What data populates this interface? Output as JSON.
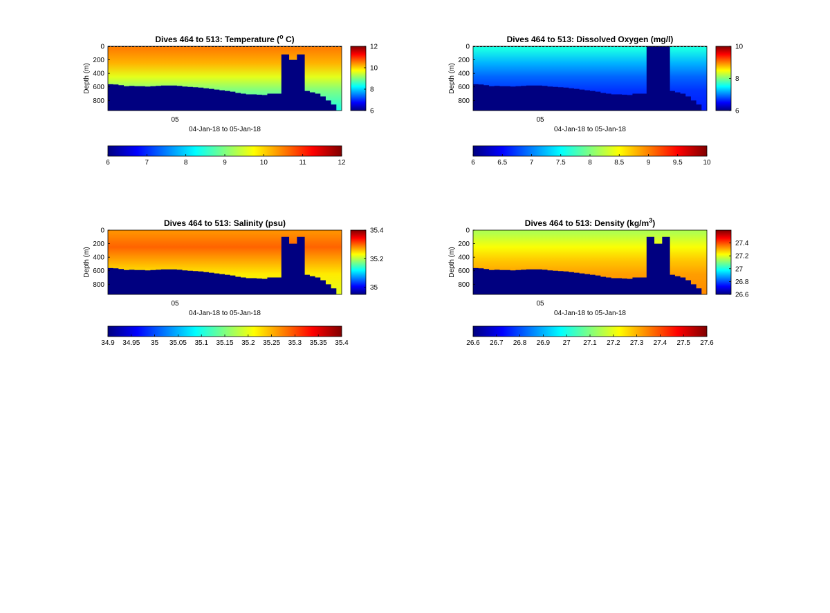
{
  "chart_data": [
    {
      "type": "heatmap",
      "title": "Dives 464 to 513: Temperature (",
      "title_sup": "o",
      "title_end": " C)",
      "ylabel": "Depth (m)",
      "xlabel": "04-Jan-18 to 05-Jan-18",
      "x_tick": "05",
      "yticks": [
        "0",
        "200",
        "400",
        "600",
        "800"
      ],
      "ylim": [
        0,
        950
      ],
      "clim": [
        6,
        12
      ],
      "side_ticks": [
        "6",
        "8",
        "10",
        "12"
      ],
      "bottom_ticks": [
        "6",
        "7",
        "8",
        "9",
        "10",
        "11",
        "12"
      ],
      "bottom_range": [
        6,
        12
      ],
      "dashed_surface": true,
      "seafloor_depth_m": [
        560,
        565,
        575,
        590,
        585,
        590,
        590,
        595,
        590,
        585,
        580,
        580,
        580,
        585,
        595,
        600,
        605,
        610,
        620,
        630,
        640,
        650,
        660,
        670,
        690,
        700,
        710,
        710,
        715,
        720,
        700,
        700,
        700,
        700,
        700,
        700,
        660,
        660,
        680,
        700,
        740,
        800,
        860,
        950
      ],
      "gap_top_m": [
        120,
        200,
        120
      ],
      "layers": [
        {
          "depth_m": 40,
          "value": 10.5
        },
        {
          "depth_m": 250,
          "value": 10.2
        },
        {
          "depth_m": 450,
          "value": 9.6
        },
        {
          "depth_m": 650,
          "value": 9.0
        },
        {
          "depth_m": 950,
          "value": 8.4
        }
      ]
    },
    {
      "type": "heatmap",
      "title": "Dives 464 to 513: Dissolved Oxygen (mg/l)",
      "ylabel": "Depth (m)",
      "xlabel": "04-Jan-18 to 05-Jan-18",
      "x_tick": "05",
      "yticks": [
        "0",
        "200",
        "400",
        "600",
        "800"
      ],
      "ylim": [
        0,
        950
      ],
      "clim": [
        6,
        10
      ],
      "side_ticks": [
        "6",
        "8",
        "10"
      ],
      "bottom_ticks": [
        "6",
        "6.5",
        "7",
        "7.5",
        "8",
        "8.5",
        "9",
        "9.5",
        "10"
      ],
      "bottom_range": [
        6,
        10
      ],
      "dashed_surface": true,
      "seafloor_depth_m": [
        560,
        565,
        575,
        590,
        585,
        590,
        590,
        595,
        590,
        585,
        580,
        580,
        580,
        585,
        595,
        600,
        605,
        610,
        620,
        630,
        640,
        650,
        660,
        670,
        690,
        700,
        710,
        710,
        715,
        720,
        700,
        700,
        700,
        700,
        700,
        700,
        660,
        660,
        680,
        700,
        740,
        800,
        860,
        950
      ],
      "gap_top_m": [
        0,
        0,
        0
      ],
      "layers": [
        {
          "depth_m": 40,
          "value": 7.6
        },
        {
          "depth_m": 250,
          "value": 7.2
        },
        {
          "depth_m": 450,
          "value": 6.9
        },
        {
          "depth_m": 650,
          "value": 6.7
        },
        {
          "depth_m": 950,
          "value": 6.6
        }
      ]
    },
    {
      "type": "heatmap",
      "title": "Dives 464 to 513: Salinity (psu)",
      "ylabel": "Depth (m)",
      "xlabel": "04-Jan-18 to 05-Jan-18",
      "x_tick": "05",
      "yticks": [
        "0",
        "200",
        "400",
        "600",
        "800"
      ],
      "ylim": [
        0,
        950
      ],
      "clim": [
        34.95,
        35.4
      ],
      "side_ticks": [
        "35",
        "35.2",
        "35.4"
      ],
      "side_tick_values": [
        35,
        35.2,
        35.4
      ],
      "bottom_ticks": [
        "34.9",
        "34.95",
        "35",
        "35.05",
        "35.1",
        "35.15",
        "35.2",
        "35.25",
        "35.3",
        "35.35",
        "35.4"
      ],
      "bottom_range": [
        34.9,
        35.4
      ],
      "dashed_surface": false,
      "seafloor_depth_m": [
        560,
        565,
        575,
        590,
        585,
        590,
        590,
        595,
        590,
        585,
        580,
        580,
        580,
        585,
        595,
        600,
        605,
        610,
        620,
        630,
        640,
        650,
        660,
        670,
        690,
        700,
        710,
        710,
        715,
        720,
        700,
        700,
        700,
        700,
        700,
        700,
        660,
        660,
        680,
        700,
        740,
        800,
        860,
        950
      ],
      "gap_top_m": [
        100,
        200,
        100
      ],
      "layers": [
        {
          "depth_m": 40,
          "value": 35.28
        },
        {
          "depth_m": 250,
          "value": 35.3
        },
        {
          "depth_m": 450,
          "value": 35.27
        },
        {
          "depth_m": 650,
          "value": 35.24
        },
        {
          "depth_m": 950,
          "value": 35.22
        }
      ]
    },
    {
      "type": "heatmap",
      "title": "Dives 464 to 513: Density (kg/m",
      "title_sup": "3",
      "title_end": ")",
      "ylabel": "Depth (m)",
      "xlabel": "04-Jan-18 to 05-Jan-18",
      "x_tick": "05",
      "yticks": [
        "0",
        "200",
        "400",
        "600",
        "800"
      ],
      "ylim": [
        0,
        950
      ],
      "clim": [
        26.6,
        27.6
      ],
      "side_ticks": [
        "26.6",
        "26.8",
        "27",
        "27.2",
        "27.4"
      ],
      "side_tick_values": [
        26.6,
        26.8,
        27,
        27.2,
        27.4
      ],
      "bottom_ticks": [
        "26.6",
        "26.7",
        "26.8",
        "26.9",
        "27",
        "27.1",
        "27.2",
        "27.3",
        "27.4",
        "27.5",
        "27.6"
      ],
      "bottom_range": [
        26.6,
        27.6
      ],
      "dashed_surface": false,
      "seafloor_depth_m": [
        560,
        565,
        575,
        590,
        585,
        590,
        590,
        595,
        590,
        585,
        580,
        580,
        580,
        585,
        595,
        600,
        605,
        610,
        620,
        630,
        640,
        650,
        660,
        670,
        690,
        700,
        710,
        710,
        715,
        720,
        700,
        700,
        700,
        700,
        700,
        700,
        660,
        660,
        680,
        700,
        740,
        800,
        860,
        950
      ],
      "gap_top_m": [
        100,
        200,
        100
      ],
      "layers": [
        {
          "depth_m": 40,
          "value": 27.15
        },
        {
          "depth_m": 250,
          "value": 27.22
        },
        {
          "depth_m": 450,
          "value": 27.28
        },
        {
          "depth_m": 650,
          "value": 27.32
        },
        {
          "depth_m": 950,
          "value": 27.34
        }
      ]
    }
  ]
}
